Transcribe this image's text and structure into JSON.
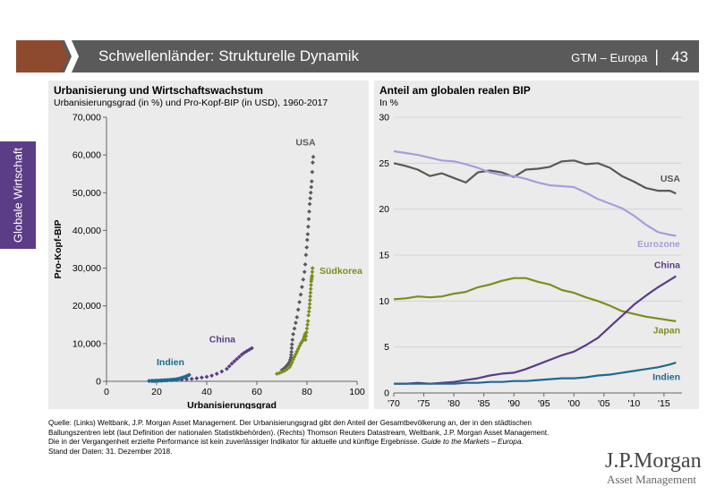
{
  "header": {
    "title": "Schwellenländer: Strukturelle Dynamik",
    "section": "GTM – Europa",
    "page": "43"
  },
  "side_tab": {
    "label": "Globale Wirtschaft"
  },
  "left_panel": {
    "title": "Urbanisierung und Wirtschaftswachstum",
    "subtitle": "Urbanisierungsgrad (in %) und Pro-Kopf-BIP (in USD), 1960-2017"
  },
  "right_panel": {
    "title": "Anteil am globalen realen BIP",
    "subtitle": "In %"
  },
  "footer": {
    "line1": "Quelle: (Links) Weltbank, J.P. Morgan Asset Management. Der Urbanisierungsgrad gibt den Anteil der Gesamtbevölkerung an, der in den städtischen",
    "line2": "Ballungszentren lebt (laut Definition der nationalen Statistikbehörden). (Rechts) Thomson Reuters Datastream, Weltbank, J.P. Morgan Asset Management.",
    "line3a": "Die in der Vergangenheit erzielte Performance ist kein zuverlässiger Indikator für aktuelle und künftige Ergebnisse. ",
    "line3b": "Guide to the Markets – Europa.",
    "line4": "Stand der Daten: 31. Dezember 2018."
  },
  "logo": {
    "line1": "J.P.Morgan",
    "line2": "Asset Management"
  },
  "chart_data": [
    {
      "type": "scatter",
      "xlabel": "Urbanisierungsgrad",
      "ylabel": "Pro-Kopf-BIP",
      "xlim": [
        0,
        100
      ],
      "ylim": [
        0,
        70000
      ],
      "xticks": [
        0,
        20,
        40,
        60,
        80,
        100
      ],
      "yticks": [
        0,
        10000,
        20000,
        30000,
        40000,
        50000,
        60000,
        70000
      ],
      "ytick_labels": [
        "0",
        "10,000",
        "20,000",
        "30,000",
        "40,000",
        "50,000",
        "60,000",
        "70,000"
      ],
      "series": [
        {
          "name": "USA",
          "color": "#595959",
          "x": [
            70.0,
            70.5,
            71.0,
            71.5,
            72.0,
            72.5,
            73.0,
            73.3,
            73.6,
            73.7,
            73.8,
            73.9,
            74.0,
            74.2,
            74.5,
            75.0,
            75.5,
            76.0,
            76.5,
            77.0,
            77.5,
            78.0,
            78.5,
            79.0,
            79.3,
            79.6,
            79.9,
            80.1,
            80.3,
            80.5,
            80.7,
            80.9,
            81.1,
            81.3,
            81.5,
            81.7,
            81.9,
            82.1,
            82.3,
            82.5
          ],
          "y": [
            3000,
            3200,
            3500,
            3800,
            4200,
            4600,
            5100,
            5700,
            6300,
            7000,
            7800,
            8800,
            9800,
            11000,
            12500,
            14000,
            15500,
            17000,
            19000,
            21000,
            23000,
            25000,
            27000,
            29000,
            31000,
            33500,
            35500,
            37500,
            39000,
            41000,
            43000,
            45000,
            47000,
            48500,
            50000,
            51500,
            53000,
            55500,
            58000,
            59500
          ]
        },
        {
          "name": "Südkorea",
          "color": "#7f8c1e",
          "x": [
            68.0,
            69.0,
            70.0,
            71.0,
            72.0,
            73.0,
            73.5,
            74.0,
            74.5,
            75.0,
            75.5,
            76.0,
            76.5,
            77.0,
            77.5,
            78.0,
            78.5,
            78.8,
            79.0,
            79.2,
            79.4,
            79.6,
            79.8,
            80.0,
            80.2,
            80.4,
            80.6,
            80.8,
            81.0,
            81.1,
            81.2,
            81.3,
            81.4,
            81.5,
            81.6,
            81.7,
            81.8,
            81.9,
            82.0,
            82.1,
            82.2
          ],
          "y": [
            2000,
            2200,
            2500,
            2800,
            3200,
            3700,
            4300,
            5000,
            5800,
            6500,
            7200,
            7900,
            8600,
            9300,
            10000,
            10500,
            11000,
            11500,
            12000,
            12500,
            11000,
            12000,
            13000,
            14000,
            15000,
            16000,
            17500,
            18500,
            19500,
            20500,
            21500,
            22500,
            23500,
            24500,
            25500,
            26500,
            27000,
            27500,
            28000,
            29000,
            30000
          ]
        },
        {
          "name": "China",
          "color": "#5b3c87",
          "x": [
            17,
            18,
            20,
            22,
            24,
            26,
            28,
            30,
            32,
            34,
            36,
            38,
            40,
            42,
            44,
            46,
            48,
            49,
            50,
            51,
            52,
            53,
            54,
            55,
            56,
            57,
            58
          ],
          "y": [
            100,
            150,
            150,
            200,
            250,
            300,
            350,
            450,
            550,
            650,
            800,
            1000,
            1200,
            1500,
            2000,
            2600,
            3300,
            4000,
            4700,
            5300,
            5900,
            6500,
            7100,
            7600,
            8000,
            8400,
            8800
          ]
        },
        {
          "name": "Indien",
          "color": "#1f6a8f",
          "x": [
            17,
            18,
            18.5,
            19,
            19.5,
            20,
            20.5,
            21,
            21.5,
            22,
            22.5,
            23,
            23.5,
            24,
            24.5,
            25,
            25.5,
            26,
            26.5,
            27,
            27.5,
            28,
            28.5,
            29,
            29.5,
            30,
            30.5,
            31,
            31.5,
            32,
            32.5,
            33
          ],
          "y": [
            100,
            100,
            120,
            100,
            130,
            150,
            150,
            180,
            200,
            220,
            250,
            270,
            280,
            300,
            320,
            350,
            380,
            400,
            430,
            460,
            500,
            550,
            620,
            700,
            800,
            900,
            1000,
            1100,
            1250,
            1400,
            1550,
            1700
          ]
        }
      ]
    },
    {
      "type": "line",
      "ylabel": "In %",
      "xlim": [
        1970,
        2018
      ],
      "ylim": [
        0,
        30
      ],
      "xticks": [
        1970,
        1975,
        1980,
        1985,
        1990,
        1995,
        2000,
        2005,
        2010,
        2015
      ],
      "xtick_labels": [
        "'70",
        "'75",
        "'80",
        "'85",
        "'90",
        "'95",
        "'00",
        "'05",
        "'10",
        "'15"
      ],
      "yticks": [
        0,
        5,
        10,
        15,
        20,
        25,
        30
      ],
      "x": [
        1970,
        1972,
        1974,
        1976,
        1978,
        1980,
        1982,
        1984,
        1986,
        1988,
        1990,
        1992,
        1994,
        1996,
        1998,
        2000,
        2002,
        2004,
        2006,
        2008,
        2010,
        2012,
        2014,
        2016,
        2017
      ],
      "series": [
        {
          "name": "USA",
          "color": "#595959",
          "values": [
            25.0,
            24.7,
            24.3,
            23.6,
            23.9,
            23.4,
            22.9,
            24.0,
            24.2,
            24.0,
            23.5,
            24.3,
            24.4,
            24.6,
            25.2,
            25.3,
            24.9,
            25.0,
            24.5,
            23.6,
            23.0,
            22.3,
            22.0,
            22.0,
            21.7
          ]
        },
        {
          "name": "Eurozone",
          "color": "#a59edb",
          "values": [
            26.3,
            26.1,
            25.9,
            25.6,
            25.3,
            25.2,
            24.9,
            24.5,
            24.0,
            23.7,
            23.6,
            23.3,
            22.9,
            22.6,
            22.5,
            22.4,
            21.8,
            21.1,
            20.6,
            20.1,
            19.3,
            18.3,
            17.5,
            17.2,
            17.1
          ]
        },
        {
          "name": "Japan",
          "color": "#7f8c1e",
          "values": [
            10.2,
            10.3,
            10.5,
            10.4,
            10.5,
            10.8,
            11.0,
            11.5,
            11.8,
            12.2,
            12.5,
            12.5,
            12.1,
            11.8,
            11.2,
            10.9,
            10.4,
            10.0,
            9.5,
            8.9,
            8.6,
            8.3,
            8.1,
            7.9,
            7.8
          ]
        },
        {
          "name": "China",
          "color": "#5b3c87",
          "values": [
            1.0,
            1.0,
            1.1,
            1.0,
            1.1,
            1.2,
            1.4,
            1.6,
            1.9,
            2.1,
            2.2,
            2.6,
            3.1,
            3.6,
            4.1,
            4.5,
            5.2,
            6.0,
            7.2,
            8.4,
            9.6,
            10.6,
            11.5,
            12.3,
            12.7
          ]
        },
        {
          "name": "Indien",
          "color": "#1f6a8f",
          "values": [
            1.0,
            1.0,
            1.0,
            1.0,
            1.0,
            1.0,
            1.1,
            1.1,
            1.2,
            1.2,
            1.3,
            1.3,
            1.4,
            1.5,
            1.6,
            1.6,
            1.7,
            1.9,
            2.0,
            2.2,
            2.4,
            2.6,
            2.8,
            3.1,
            3.3
          ]
        }
      ]
    }
  ]
}
